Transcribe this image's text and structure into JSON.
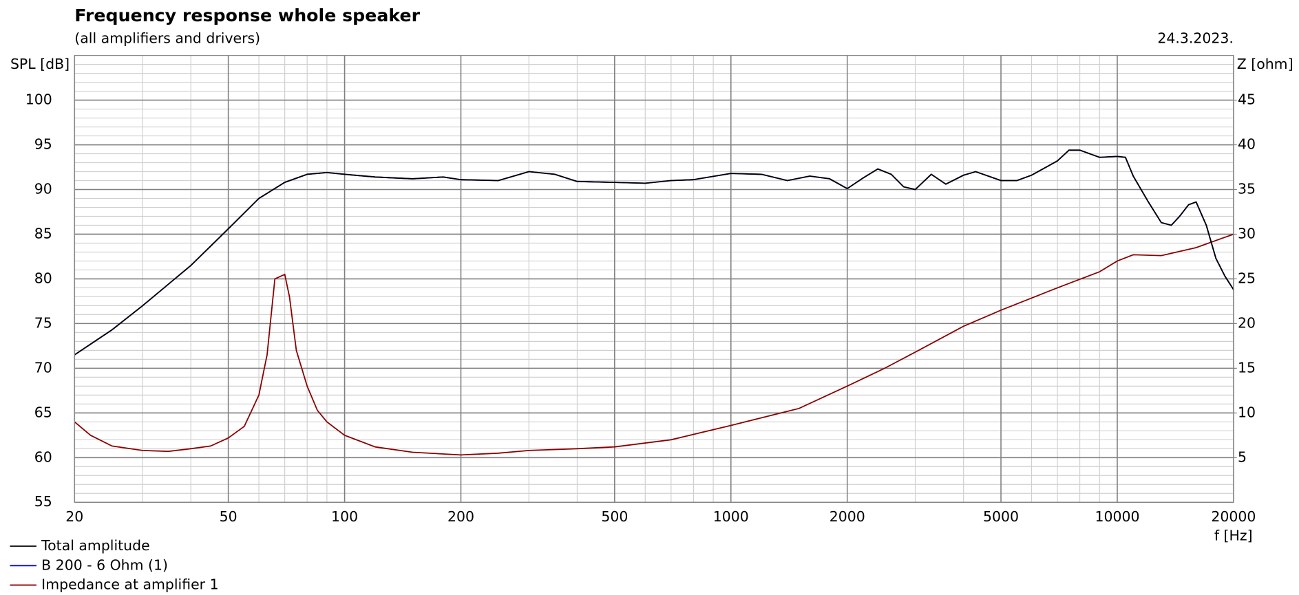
{
  "chart_data": {
    "type": "line",
    "title": "Frequency response whole speaker",
    "subtitle": "(all amplifiers and drivers)",
    "date": "24.3.2023.",
    "y_label": "SPL [dB]",
    "y2_label": "Z [ohm]",
    "x_label": "f [Hz]",
    "log_x": true,
    "grid": true,
    "minor_grid": true,
    "xlim": [
      20,
      20000
    ],
    "xticks": [
      20,
      50,
      100,
      200,
      500,
      1000,
      2000,
      5000,
      10000,
      20000
    ],
    "ylim": [
      55,
      105
    ],
    "yticks": [
      55,
      60,
      65,
      70,
      75,
      80,
      85,
      90,
      95,
      100
    ],
    "y2lim": [
      0,
      50
    ],
    "y2ticks": [
      5,
      10,
      15,
      20,
      25,
      30,
      35,
      40,
      45
    ],
    "legend": "bottom-left",
    "series": [
      {
        "name": "Total amplitude",
        "color": "#000000",
        "x": [
          20,
          25,
          30,
          40,
          50,
          60,
          70,
          80,
          90,
          100,
          120,
          150,
          180,
          200,
          250,
          300,
          350,
          400,
          500,
          600,
          700,
          800,
          1000,
          1200,
          1400,
          1600,
          1800,
          2000,
          2200,
          2400,
          2600,
          2800,
          3000,
          3300,
          3600,
          4000,
          4300,
          5000,
          5500,
          6000,
          7000,
          7500,
          8000,
          9000,
          10000,
          10500,
          11000,
          12000,
          13000,
          13800,
          14500,
          15300,
          16000,
          17000,
          18000,
          19000,
          20000
        ],
        "values": [
          71.5,
          74.3,
          77,
          81.5,
          85.6,
          89,
          90.8,
          91.7,
          91.9,
          91.7,
          91.4,
          91.2,
          91.4,
          91.1,
          91,
          92,
          91.7,
          90.9,
          90.8,
          90.7,
          91,
          91.1,
          91.8,
          91.7,
          91,
          91.5,
          91.2,
          90.1,
          91.3,
          92.3,
          91.7,
          90.3,
          90,
          91.7,
          90.6,
          91.6,
          92,
          91,
          91,
          91.6,
          93.2,
          94.4,
          94.4,
          93.6,
          93.7,
          93.6,
          91.5,
          88.7,
          86.3,
          86,
          87,
          88.3,
          88.6,
          86,
          82.3,
          80.3,
          78.8
        ]
      },
      {
        "name": "B 200 - 6 Ohm (1)",
        "color": "#0000ff",
        "x": [
          20,
          25,
          30,
          40,
          50,
          60,
          70,
          80,
          90,
          100,
          120,
          150,
          180,
          200,
          250,
          300,
          350,
          400,
          500,
          600,
          700,
          800,
          1000,
          1200,
          1400,
          1600,
          1800,
          2000,
          2200,
          2400,
          2600,
          2800,
          3000,
          3300,
          3600,
          4000,
          4300,
          5000,
          5500,
          6000,
          7000,
          7500,
          8000,
          9000,
          10000,
          10500,
          11000,
          12000,
          13000,
          13800,
          14500,
          15300,
          16000,
          17000,
          18000,
          19000,
          20000
        ],
        "values": [
          71.5,
          74.3,
          77,
          81.5,
          85.6,
          89,
          90.8,
          91.7,
          91.9,
          91.7,
          91.4,
          91.2,
          91.4,
          91.1,
          91,
          92,
          91.7,
          90.9,
          90.8,
          90.7,
          91,
          91.1,
          91.8,
          91.7,
          91,
          91.5,
          91.2,
          90.1,
          91.3,
          92.3,
          91.7,
          90.3,
          90,
          91.7,
          90.6,
          91.6,
          92,
          91,
          91,
          91.6,
          93.2,
          94.4,
          94.4,
          93.6,
          93.7,
          93.6,
          91.5,
          88.7,
          86.3,
          86,
          87,
          88.3,
          88.6,
          86,
          82.3,
          80.3,
          78.8
        ]
      },
      {
        "name": "Impedance at amplifier 1",
        "color": "#8b0000",
        "axis": "y2",
        "x": [
          20,
          22,
          25,
          30,
          35,
          40,
          45,
          50,
          55,
          60,
          63,
          66,
          70,
          72,
          75,
          80,
          85,
          90,
          100,
          120,
          150,
          200,
          250,
          300,
          400,
          500,
          700,
          1000,
          1500,
          2000,
          2500,
          3000,
          4000,
          5000,
          7000,
          9000,
          10000,
          11000,
          13000,
          16000,
          20000
        ],
        "values": [
          9,
          7.5,
          6.3,
          5.8,
          5.7,
          6,
          6.3,
          7.2,
          8.5,
          12,
          16.5,
          25,
          25.5,
          23,
          17,
          13,
          10.3,
          9,
          7.5,
          6.2,
          5.6,
          5.3,
          5.5,
          5.8,
          6,
          6.2,
          7,
          8.6,
          10.5,
          13,
          15,
          16.8,
          19.7,
          21.5,
          24,
          25.8,
          27,
          27.7,
          27.6,
          28.5,
          30
        ]
      }
    ]
  }
}
